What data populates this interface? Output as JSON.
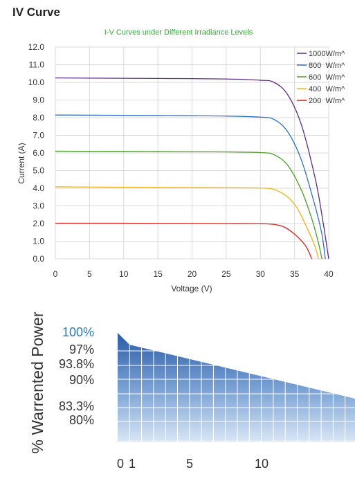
{
  "page_title": "IV Curve",
  "chart_data": [
    {
      "type": "line",
      "title": "I-V Curves under Different Irradiance Levels",
      "xlabel": "Voltage (V)",
      "ylabel": "Current (A)",
      "xlim": [
        0,
        40
      ],
      "ylim": [
        0,
        12
      ],
      "x_ticks": [
        "0",
        "5",
        "10",
        "15",
        "20",
        "25",
        "30",
        "35",
        "40"
      ],
      "y_ticks": [
        "0.0",
        "1.0",
        "2.0",
        "3.0",
        "4.0",
        "5.0",
        "6.0",
        "7.0",
        "8.0",
        "9.0",
        "10.0",
        "11.0",
        "12.0"
      ],
      "grid": "on",
      "legend": "top-right",
      "series": [
        {
          "name": "1000W/m^",
          "color": "#5b2c83",
          "isc": 10.25,
          "voc": 40.0,
          "x": [
            0,
            5,
            10,
            15,
            20,
            25,
            30,
            32,
            34,
            36,
            38,
            39,
            40
          ],
          "y": [
            10.25,
            10.24,
            10.23,
            10.22,
            10.21,
            10.19,
            10.12,
            10.0,
            9.3,
            7.6,
            4.6,
            2.5,
            0
          ]
        },
        {
          "name": "800  W/m^",
          "color": "#2e6fbf",
          "isc": 8.15,
          "voc": 39.5,
          "x": [
            0,
            5,
            10,
            15,
            20,
            25,
            30,
            32,
            34,
            36,
            38,
            39,
            39.5
          ],
          "y": [
            8.15,
            8.14,
            8.13,
            8.12,
            8.11,
            8.09,
            8.03,
            7.9,
            7.2,
            5.6,
            3.0,
            1.4,
            0
          ]
        },
        {
          "name": "600  W/m^",
          "color": "#4c9a2a",
          "isc": 6.1,
          "voc": 39.0,
          "x": [
            0,
            5,
            10,
            15,
            20,
            25,
            30,
            32,
            34,
            36,
            37.5,
            38.5,
            39
          ],
          "y": [
            6.1,
            6.09,
            6.09,
            6.08,
            6.07,
            6.06,
            6.02,
            5.9,
            5.3,
            3.9,
            2.3,
            0.9,
            0
          ]
        },
        {
          "name": "400  W/m^",
          "color": "#f0b21c",
          "isc": 4.08,
          "voc": 38.5,
          "x": [
            0,
            5,
            10,
            15,
            20,
            25,
            30,
            32,
            34,
            35.5,
            37,
            38,
            38.5
          ],
          "y": [
            4.08,
            4.07,
            4.06,
            4.05,
            4.04,
            4.03,
            4.01,
            3.93,
            3.5,
            2.8,
            1.6,
            0.7,
            0
          ]
        },
        {
          "name": "200  W/m^",
          "color": "#d42020",
          "isc": 2.02,
          "voc": 37.5,
          "x": [
            0,
            5,
            10,
            15,
            20,
            25,
            30,
            32,
            33.5,
            35,
            36.5,
            37.2,
            37.5
          ],
          "y": [
            2.02,
            2.02,
            2.02,
            2.01,
            2.01,
            2.0,
            1.99,
            1.95,
            1.8,
            1.4,
            0.8,
            0.3,
            0
          ]
        }
      ]
    },
    {
      "type": "area",
      "title": "",
      "ylabel": "% Warrented Power",
      "xlabel": "",
      "x_ticks": [
        "0",
        "1",
        "5",
        "10"
      ],
      "y_ticks": [
        "100%",
        "97%",
        "93.8%",
        "90%",
        "83.3%",
        "80%"
      ],
      "highlight_tick": "100%",
      "highlight_color": "#2a7ab8",
      "xlim": [
        0,
        25
      ],
      "ylim": [
        80,
        100
      ],
      "series": [
        {
          "name": "",
          "color": "#2b5ca8",
          "x": [
            0,
            1,
            25
          ],
          "y": [
            100,
            97,
            83.3
          ]
        }
      ]
    }
  ]
}
